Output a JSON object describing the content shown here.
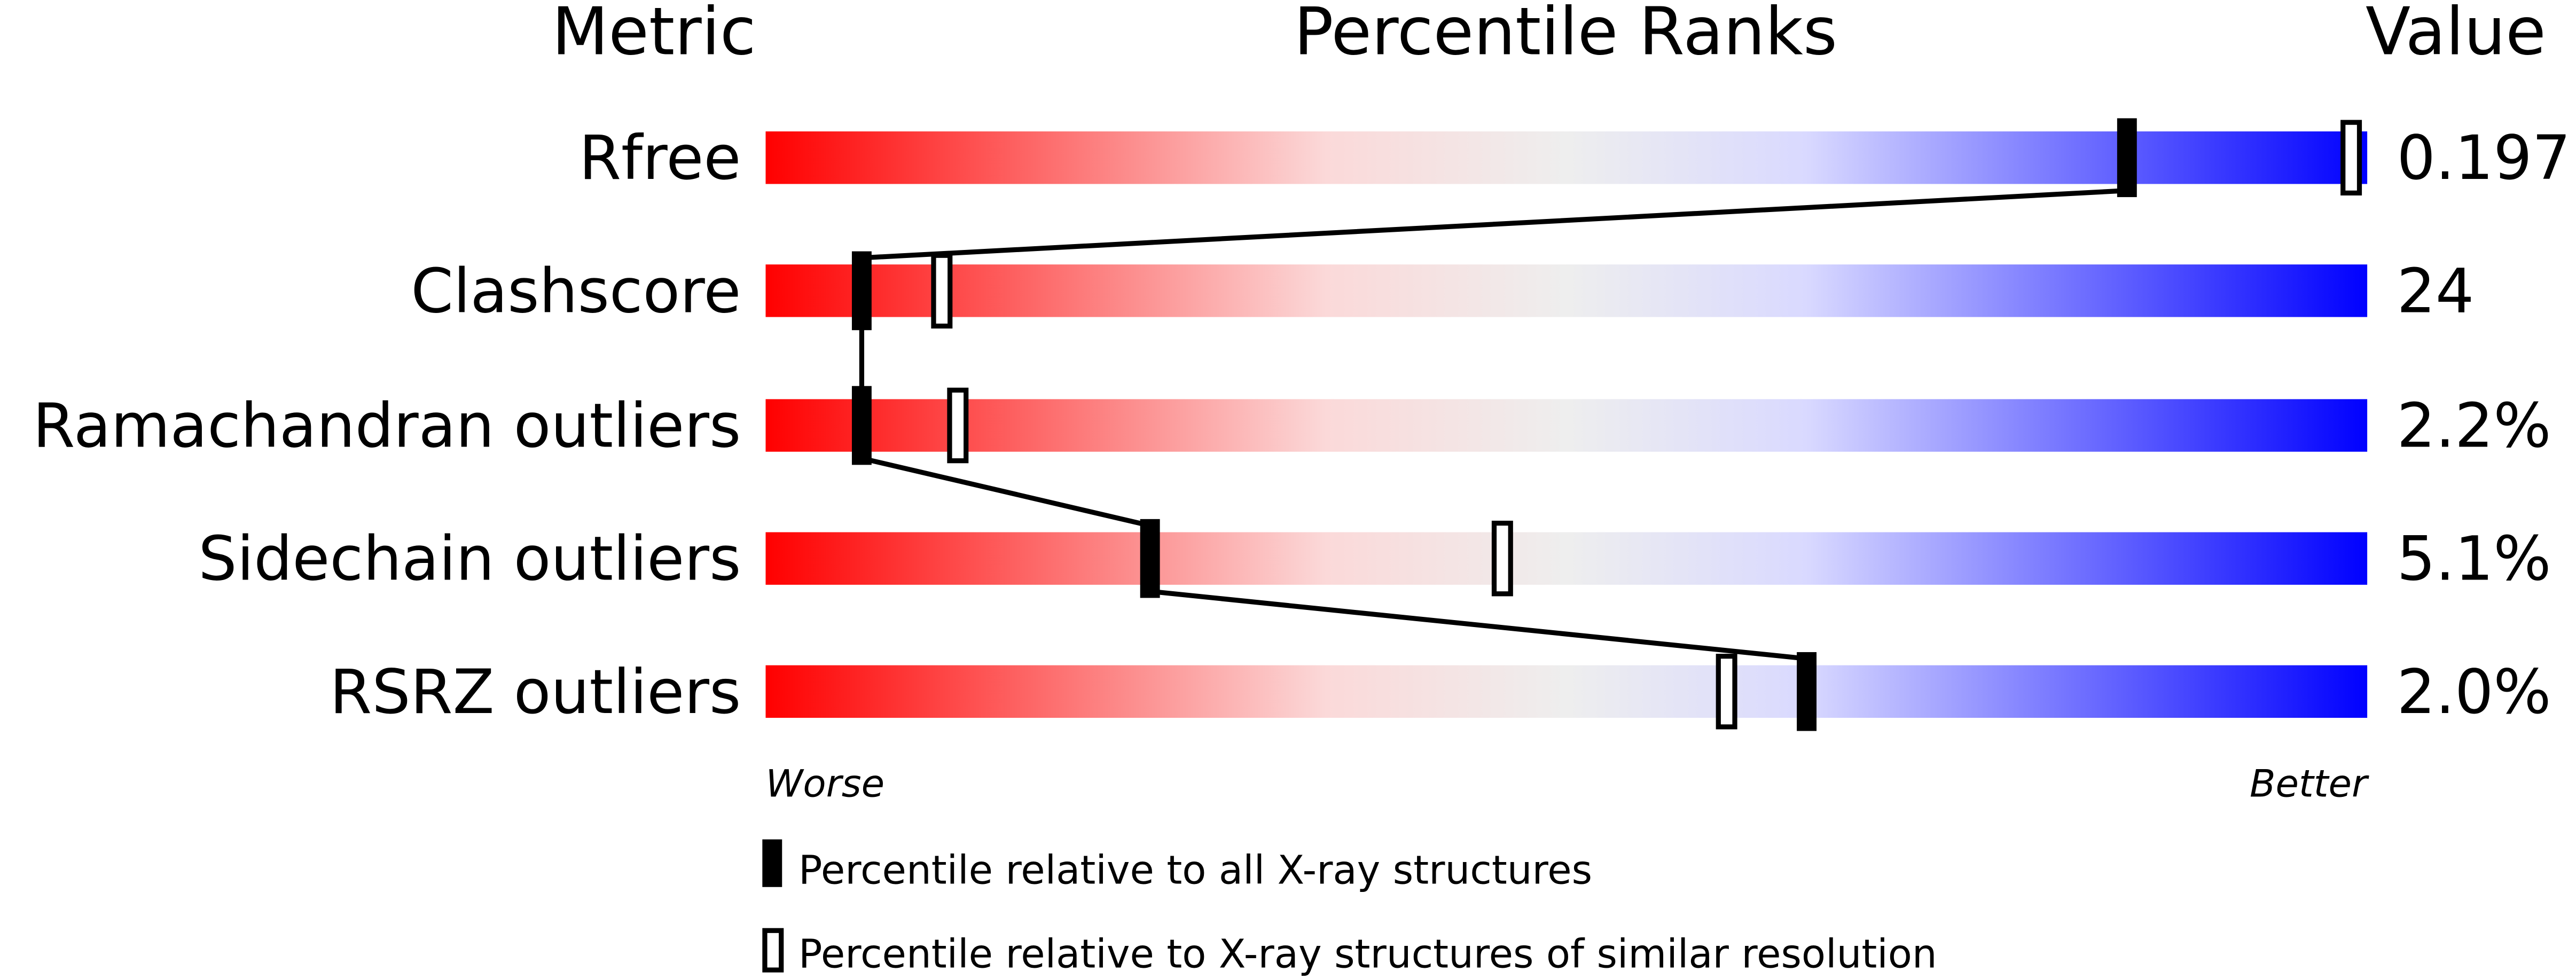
{
  "chart_data": {
    "type": "percentile-slider",
    "headers": {
      "metric": "Metric",
      "title": "Percentile Ranks",
      "value": "Value"
    },
    "xlim": [
      0,
      100
    ],
    "axis_labels": {
      "left": "Worse",
      "right": "Better"
    },
    "gradient_colors": [
      "#ff0000",
      "#fbd9d9",
      "#eeeeee",
      "#d9d9ff",
      "#0000ff"
    ],
    "rows": [
      {
        "metric": "Rfree",
        "value": "0.197",
        "percentile_all": 85,
        "percentile_similar": 99
      },
      {
        "metric": "Clashscore",
        "value": "24",
        "percentile_all": 6,
        "percentile_similar": 11
      },
      {
        "metric": "Ramachandran outliers",
        "value": "2.2%",
        "percentile_all": 6,
        "percentile_similar": 12
      },
      {
        "metric": "Sidechain outliers",
        "value": "5.1%",
        "percentile_all": 24,
        "percentile_similar": 46
      },
      {
        "metric": "RSRZ outliers",
        "value": "2.0%",
        "percentile_all": 65,
        "percentile_similar": 60
      }
    ],
    "legend": [
      {
        "marker": "filled",
        "label": "Percentile relative to all X-ray structures"
      },
      {
        "marker": "open",
        "label": "Percentile relative to X-ray structures of similar resolution"
      }
    ]
  }
}
